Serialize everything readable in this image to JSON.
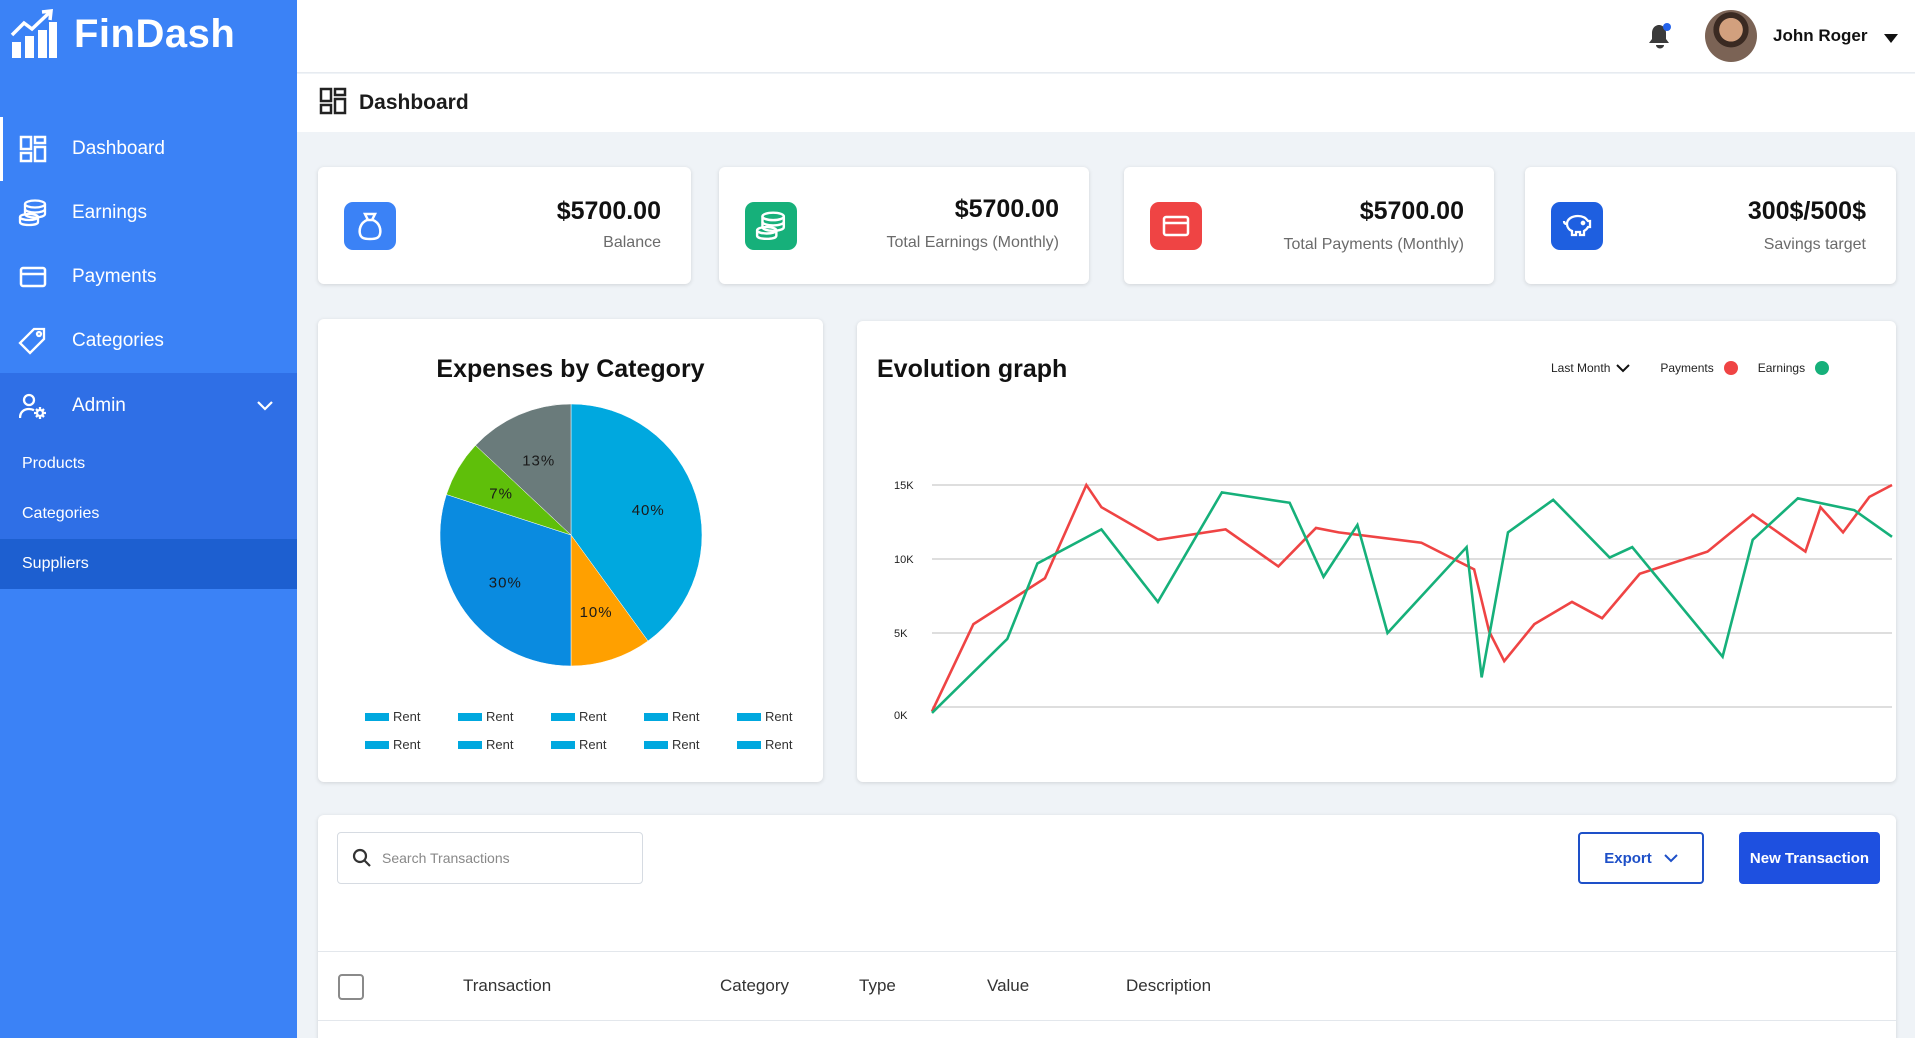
{
  "app": {
    "name": "FinDash"
  },
  "sidebar": {
    "items": [
      {
        "label": "Dashboard",
        "icon": "dashboard-grid-icon"
      },
      {
        "label": "Earnings",
        "icon": "coins-icon"
      },
      {
        "label": "Payments",
        "icon": "credit-card-icon"
      },
      {
        "label": "Categories",
        "icon": "tag-icon"
      }
    ],
    "admin": {
      "label": "Admin",
      "icon": "user-gear-icon",
      "subitems": [
        "Products",
        "Categories",
        "Suppliers"
      ],
      "selected": "Suppliers"
    }
  },
  "topbar": {
    "user_name": "John Roger",
    "notification_dot_color": "#2563eb"
  },
  "page": {
    "title": "Dashboard"
  },
  "stats": [
    {
      "value": "$5700.00",
      "label": "Balance",
      "color": "#3b82f6",
      "icon": "money-bag-icon"
    },
    {
      "value": "$5700.00",
      "label": "Total Earnings (Monthly)",
      "color": "#16b07a",
      "icon": "coins-icon"
    },
    {
      "value": "$5700.00",
      "label": "Total Payments (Monthly)",
      "color": "#ef4444",
      "icon": "credit-card-icon"
    },
    {
      "value": "300$/500$",
      "label": "Savings target",
      "color": "#1e5fe0",
      "icon": "piggy-bank-icon"
    }
  ],
  "pie": {
    "title": "Expenses by Category",
    "legend": [
      "Rent",
      "Rent",
      "Rent",
      "Rent",
      "Rent",
      "Rent",
      "Rent",
      "Rent",
      "Rent",
      "Rent"
    ],
    "legend_color": "#00a8df"
  },
  "graph": {
    "title": "Evolution graph",
    "range_label": "Last Month",
    "series_labels": [
      "Payments",
      "Earnings"
    ]
  },
  "transactions": {
    "search_placeholder": "Search Transactions",
    "export_label": "Export",
    "new_label": "New Transaction",
    "columns": [
      "Transaction",
      "Category",
      "Type",
      "Value",
      "Description"
    ]
  },
  "chart_data": [
    {
      "type": "pie",
      "title": "Expenses by Category",
      "slices": [
        {
          "label": "40%",
          "value": 40,
          "color": "#00a8df"
        },
        {
          "label": "10%",
          "value": 10,
          "color": "#ffa000"
        },
        {
          "label": "30%",
          "value": 30,
          "color": "#0a8be0"
        },
        {
          "label": "7%",
          "value": 7,
          "color": "#5fbf0a"
        },
        {
          "label": "13%",
          "value": 13,
          "color": "#6a7b7b"
        }
      ],
      "legend": [
        "Rent",
        "Rent",
        "Rent",
        "Rent",
        "Rent",
        "Rent",
        "Rent",
        "Rent",
        "Rent",
        "Rent"
      ]
    },
    {
      "type": "line",
      "title": "Evolution graph",
      "ylim": [
        0,
        15000
      ],
      "yticks": [
        0,
        5000,
        10000,
        15000
      ],
      "ytick_labels": [
        "0K",
        "5K",
        "10K",
        "15K"
      ],
      "grid": true,
      "legend": "top-right",
      "series": [
        {
          "name": "Payments",
          "color": "#ef4444",
          "x": [
            0,
            1.1,
            3,
            4.1,
            4.5,
            6,
            7.8,
            9.2,
            10.2,
            10.8,
            13,
            14.4,
            14.8,
            15.2,
            16,
            17,
            17.8,
            18.8,
            20.6,
            21.8,
            23.2,
            23.6,
            24.2,
            24.9,
            25.5
          ],
          "y": [
            -300,
            5600,
            8700,
            15000,
            13500,
            11300,
            12000,
            9500,
            12100,
            11800,
            11100,
            9300,
            5100,
            3100,
            5600,
            7100,
            6000,
            9000,
            10500,
            13000,
            10500,
            13500,
            11800,
            14200,
            15000
          ]
        },
        {
          "name": "Earnings",
          "color": "#16b07a",
          "x": [
            0,
            2,
            2.8,
            4.5,
            6,
            7.7,
            9.5,
            10.4,
            11.3,
            12.1,
            14.2,
            14.6,
            15.3,
            16.5,
            18,
            18.6,
            21,
            21.8,
            23,
            24.5,
            25.5
          ],
          "y": [
            -400,
            4600,
            9700,
            12000,
            7100,
            14500,
            13800,
            8800,
            12300,
            5000,
            10800,
            2000,
            11800,
            14000,
            10100,
            10800,
            3400,
            11300,
            14100,
            13300,
            11500
          ]
        }
      ]
    }
  ]
}
